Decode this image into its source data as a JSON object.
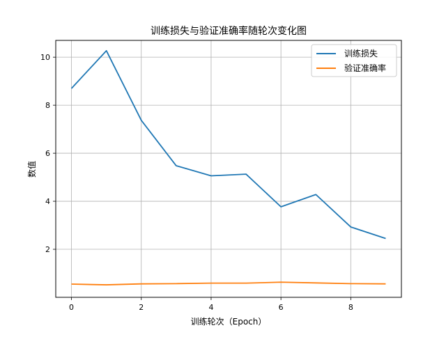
{
  "chart_data": {
    "type": "line",
    "title": "训练损失与验证准确率随轮次变化图",
    "xlabel": "训练轮次（Epoch）",
    "ylabel": "数值",
    "x": [
      0,
      1,
      2,
      3,
      4,
      5,
      6,
      7,
      8,
      9
    ],
    "xlim": [
      -0.45,
      9.45
    ],
    "ylim": [
      -0.0,
      10.7
    ],
    "xticks": [
      0,
      2,
      4,
      6,
      8
    ],
    "yticks": [
      2,
      4,
      6,
      8,
      10
    ],
    "grid": true,
    "legend_position": "top-right",
    "series": [
      {
        "name": "训练损失",
        "color": "#1f77b4",
        "values": [
          8.7,
          10.27,
          7.37,
          5.48,
          5.06,
          5.13,
          3.77,
          4.28,
          2.93,
          2.45
        ]
      },
      {
        "name": "验证准确率",
        "color": "#ff7f0e",
        "values": [
          0.55,
          0.52,
          0.56,
          0.57,
          0.59,
          0.59,
          0.63,
          0.6,
          0.57,
          0.56
        ]
      }
    ]
  }
}
